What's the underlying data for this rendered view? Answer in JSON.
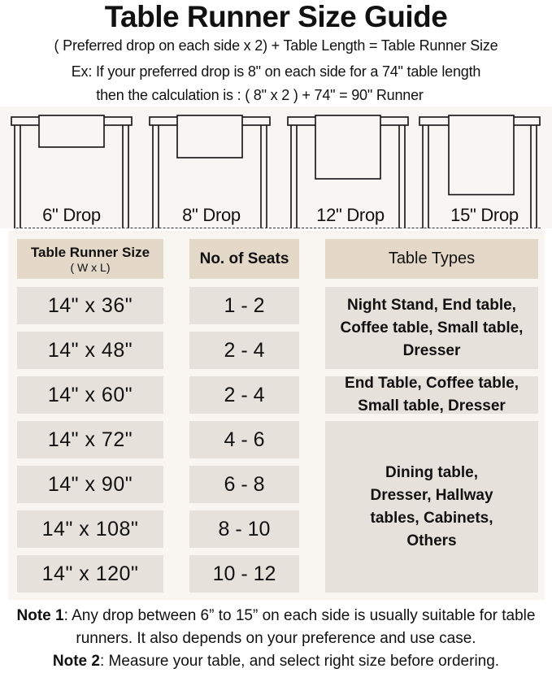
{
  "title": "Table Runner Size Guide",
  "formula": "( Preferred drop on each side x 2) + Table Length = Table Runner Size",
  "example_line1": "Ex: If your preferred drop is 8\" on each side for a 74\" table length",
  "example_line2": "then the calculation is : ( 8\" x 2 ) + 74\" = 90\" Runner",
  "drops": [
    {
      "label": "6\" Drop",
      "inches": 6
    },
    {
      "label": "8\" Drop",
      "inches": 8
    },
    {
      "label": "12\" Drop",
      "inches": 12
    },
    {
      "label": "15\" Drop",
      "inches": 15
    }
  ],
  "table": {
    "headers": {
      "size": "Table Runner Size",
      "size_sub": "( W x L)",
      "seats": "No. of Seats",
      "types": "Table Types"
    },
    "rows": [
      {
        "size": "14\" x 36\"",
        "seats": "1 - 2"
      },
      {
        "size": "14\" x 48\"",
        "seats": "2 - 4"
      },
      {
        "size": "14\" x 60\"",
        "seats": "2 - 4"
      },
      {
        "size": "14\" x 72\"",
        "seats": "4 - 6"
      },
      {
        "size": "14\" x 90\"",
        "seats": "6 - 8"
      },
      {
        "size": "14\" x 108\"",
        "seats": "8 - 10"
      },
      {
        "size": "14\" x 120\"",
        "seats": "10 - 12"
      }
    ],
    "types": [
      "Night Stand, End table, Coffee table, Small table, Dresser",
      "End Table, Coffee table, Small table, Dresser",
      "Dining table, Dresser, Hallway tables, Cabinets, Others"
    ]
  },
  "notes": [
    {
      "label": "Note 1",
      "text": ": Any drop between 6” to 15” on each side is usually suitable for table runners. It also depends on your preference and use case."
    },
    {
      "label": "Note 2",
      "text": ": Measure your table, and select right size before ordering."
    }
  ],
  "colors": {
    "header_bg": "#e4d8c9",
    "cell_bg": "#e7e1dc",
    "panel_bg": "#f9f5f1"
  }
}
